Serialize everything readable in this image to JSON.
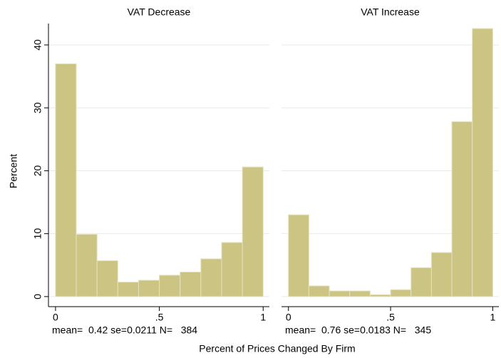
{
  "chart_data": [
    {
      "type": "histogram",
      "title": "VAT Decrease",
      "bins": [
        0,
        0.1,
        0.2,
        0.3,
        0.4,
        0.5,
        0.6,
        0.7,
        0.8,
        0.9,
        1
      ],
      "counts": [
        37,
        9.9,
        5.7,
        2.3,
        2.6,
        3.4,
        3.9,
        6,
        8.6,
        20.6
      ],
      "color": "#cbc482",
      "xlim": [
        -0.034,
        1.03
      ],
      "xticks": [
        0,
        {
          "value": 0.5,
          "label": ".5"
        },
        1
      ],
      "ylim": [
        -1.6,
        43.4
      ],
      "yticks": [
        0,
        10,
        20,
        30,
        40
      ],
      "grid": true,
      "note": "mean=  0.42 se=0.0211 N=   384"
    },
    {
      "type": "histogram",
      "title": "VAT Increase",
      "bins": [
        0,
        0.1,
        0.2,
        0.3,
        0.4,
        0.5,
        0.6,
        0.7,
        0.8,
        0.9,
        1
      ],
      "counts": [
        13,
        1.7,
        0.9,
        0.9,
        0.3,
        1.1,
        4.6,
        7,
        27.8,
        42.6
      ],
      "color": "#cbc482",
      "xlim": [
        -0.034,
        1.03
      ],
      "xticks": [
        0,
        {
          "value": 0.5,
          "label": ".5"
        },
        1
      ],
      "ylim": [
        -1.6,
        43.4
      ],
      "yticks": [
        0,
        10,
        20,
        30,
        40
      ],
      "grid": true,
      "note": "mean=  0.76 se=0.0183 N=   345"
    }
  ],
  "ylabel": "Percent",
  "xlabel": "Percent of Prices Changed By Firm"
}
